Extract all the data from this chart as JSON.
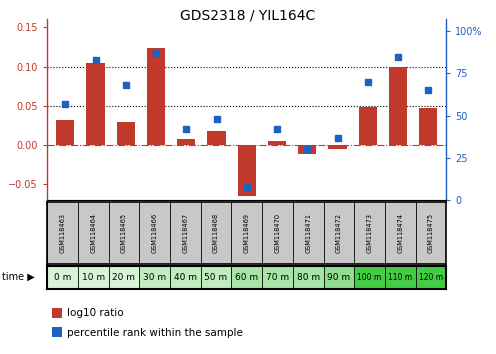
{
  "title": "GDS2318 / YIL164C",
  "samples": [
    "GSM118463",
    "GSM118464",
    "GSM118465",
    "GSM118466",
    "GSM118467",
    "GSM118468",
    "GSM118469",
    "GSM118470",
    "GSM118471",
    "GSM118472",
    "GSM118473",
    "GSM118474",
    "GSM118475"
  ],
  "time_labels": [
    "0 m",
    "10 m",
    "20 m",
    "30 m",
    "40 m",
    "50 m",
    "60 m",
    "70 m",
    "80 m",
    "90 m",
    "100 m",
    "110 m",
    "120 m"
  ],
  "log10_ratio": [
    0.032,
    0.105,
    0.03,
    0.124,
    0.008,
    0.018,
    -0.065,
    0.005,
    -0.012,
    -0.005,
    0.048,
    0.1,
    0.047
  ],
  "percentile_rank": [
    57,
    83,
    68,
    87,
    42,
    48,
    8,
    42,
    30,
    37,
    70,
    85,
    65
  ],
  "bar_color": "#c0392b",
  "dot_color": "#2060c0",
  "ylim_left": [
    -0.07,
    0.16
  ],
  "ylim_right": [
    0,
    107
  ],
  "yticks_left": [
    -0.05,
    0,
    0.05,
    0.1,
    0.15
  ],
  "yticks_right": [
    0,
    25,
    50,
    75,
    100
  ],
  "hlines": [
    0.05,
    0.1
  ],
  "bg_color": "#ffffff",
  "time_colors": [
    "#d8f4d8",
    "#d8f4d8",
    "#d8f4d8",
    "#c0ecc0",
    "#c0ecc0",
    "#c0ecc0",
    "#a8e4a8",
    "#a8e4a8",
    "#a8e4a8",
    "#90dc90",
    "#44cc44",
    "#44cc44",
    "#44cc44"
  ],
  "sample_bg": "#c8c8c8",
  "title_fontsize": 10,
  "tick_fontsize": 7,
  "legend_fontsize": 7.5
}
